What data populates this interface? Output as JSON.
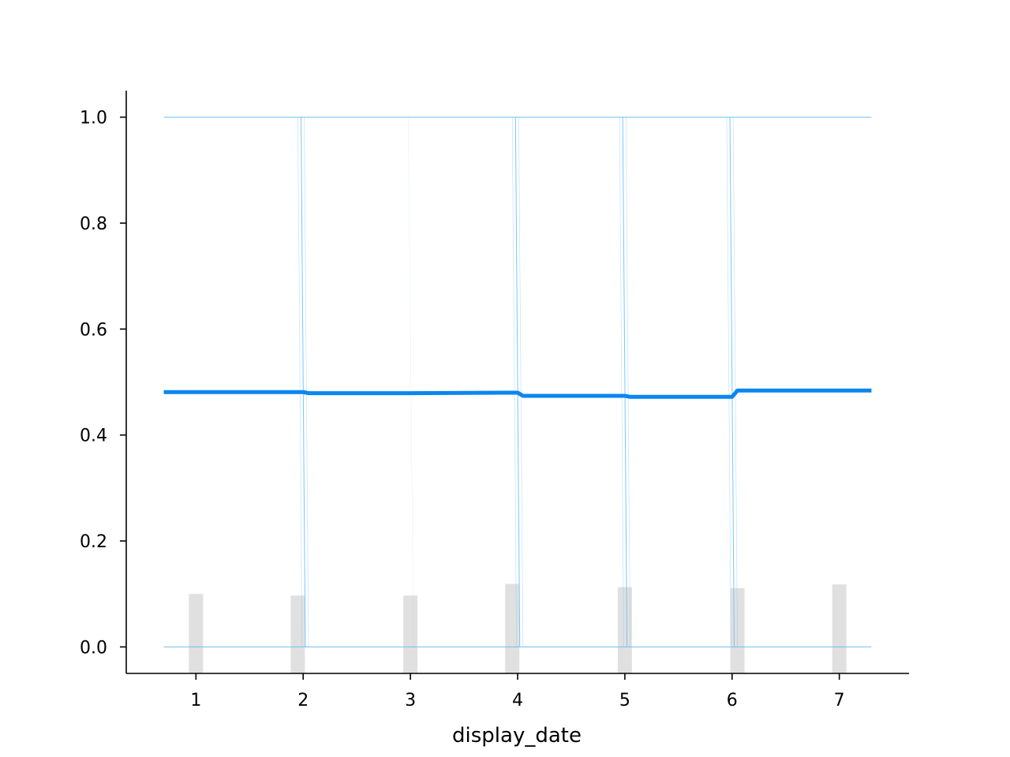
{
  "chart_data": {
    "type": "line",
    "title": "",
    "xlabel": "display_date",
    "ylabel": "",
    "xlim": [
      0.35,
      7.65
    ],
    "ylim": [
      -0.05,
      1.05
    ],
    "x_ticks": [
      "1",
      "2",
      "3",
      "4",
      "5",
      "6",
      "7"
    ],
    "y_ticks": [
      "0.0",
      "0.2",
      "0.4",
      "0.6",
      "0.8",
      "1.0"
    ],
    "grid": false,
    "legend": "none",
    "colors": {
      "mean_line": "#0a86f0",
      "ice_lines": "#6fbff5",
      "histogram": "#e0e0e0",
      "axes": "#000000"
    },
    "series": [
      {
        "x": [
          0.7,
          1,
          2,
          2.05,
          3,
          4,
          4.05,
          5,
          5.05,
          6,
          6.05,
          7,
          7.3
        ],
        "values": [
          0.481,
          0.481,
          0.481,
          0.479,
          0.479,
          0.48,
          0.474,
          0.474,
          0.472,
          0.472,
          0.484,
          0.484,
          0.484
        ]
      }
    ],
    "ice_reference": {
      "x_range": [
        0.7,
        7.3
      ],
      "levels": [
        0.0,
        1.0
      ],
      "transitions_at": [
        2,
        4,
        5,
        6
      ]
    },
    "histogram": {
      "x": [
        1,
        1.95,
        3,
        3.95,
        5,
        6.05,
        7
      ],
      "values": [
        0.1,
        0.097,
        0.097,
        0.119,
        0.113,
        0.111,
        0.118
      ]
    }
  }
}
